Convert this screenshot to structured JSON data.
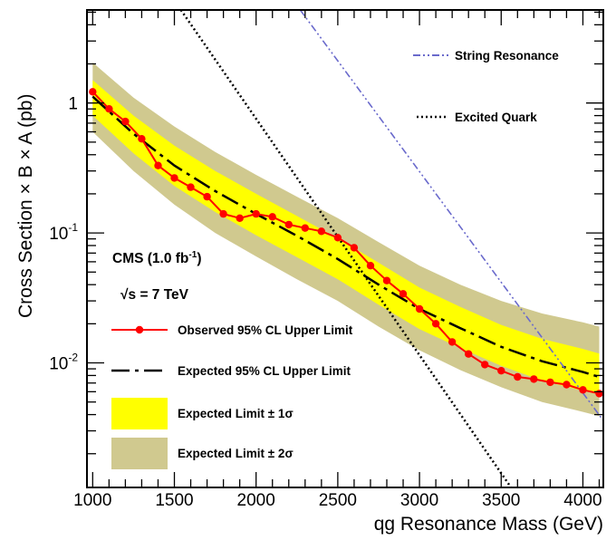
{
  "chart_data": {
    "type": "line",
    "xlabel": "qg Resonance Mass (GeV)",
    "ylabel": "Cross Section × B × A (pb)",
    "xlim": [
      965,
      4125
    ],
    "ylim": [
      0.0011,
      5.2
    ],
    "yscale": "log",
    "x_ticks": [
      1000,
      1500,
      2000,
      2500,
      3000,
      3500,
      4000
    ],
    "x_tick_labels": [
      "1000",
      "1500",
      "2000",
      "2500",
      "3000",
      "3500",
      "4000"
    ],
    "y_ticks": [
      {
        "value": 0.01,
        "label": "10",
        "exp": "-2"
      },
      {
        "value": 0.1,
        "label": "10",
        "exp": "-1"
      },
      {
        "value": 1,
        "label": "1",
        "exp": ""
      }
    ],
    "annotations": {
      "experiment": "CMS (1.0 fb",
      "experiment_sup": "-1",
      "experiment_close": ")",
      "energy_root": "√s",
      "energy": " = 7 TeV"
    },
    "series": [
      {
        "name": "Observed 95% CL Upper Limit",
        "style": "line-markers",
        "color": "#ff0000",
        "x": [
          1000,
          1100,
          1200,
          1300,
          1400,
          1500,
          1600,
          1700,
          1800,
          1900,
          2000,
          2100,
          2200,
          2300,
          2400,
          2500,
          2600,
          2700,
          2800,
          2900,
          3000,
          3100,
          3200,
          3300,
          3400,
          3500,
          3600,
          3700,
          3800,
          3900,
          4000,
          4100
        ],
        "y": [
          1.22,
          0.9,
          0.72,
          0.53,
          0.33,
          0.265,
          0.225,
          0.19,
          0.14,
          0.13,
          0.14,
          0.133,
          0.116,
          0.109,
          0.103,
          0.092,
          0.077,
          0.056,
          0.043,
          0.034,
          0.026,
          0.02,
          0.0145,
          0.0117,
          0.0097,
          0.0087,
          0.0078,
          0.0075,
          0.0071,
          0.0068,
          0.0062,
          0.0058
        ]
      },
      {
        "name": "Expected 95% CL Upper Limit",
        "style": "long-dash-dot",
        "color": "#000000",
        "x": [
          1000,
          1250,
          1500,
          1750,
          2000,
          2250,
          2500,
          2750,
          3000,
          3250,
          3500,
          3750,
          4000,
          4100
        ],
        "y": [
          1.12,
          0.58,
          0.33,
          0.21,
          0.14,
          0.095,
          0.063,
          0.04,
          0.026,
          0.0185,
          0.0133,
          0.0103,
          0.0085,
          0.0078
        ]
      },
      {
        "name": "Excited Quark",
        "style": "dotted",
        "color": "#000000",
        "x": [
          1540,
          3560
        ],
        "y": [
          5.2,
          0.0011
        ]
      },
      {
        "name": "String Resonance",
        "style": "dash-dot-dot",
        "color": "#6a6acc",
        "x": [
          2270,
          4125
        ],
        "y": [
          5.2,
          0.0036
        ]
      }
    ],
    "bands": [
      {
        "name": "Expected Limit ± 2σ",
        "color": "#d0c98f",
        "x": [
          1000,
          1250,
          1500,
          1750,
          2000,
          2250,
          2500,
          2750,
          3000,
          3250,
          3500,
          3750,
          4000,
          4100
        ],
        "lower": [
          0.6,
          0.3,
          0.165,
          0.1,
          0.066,
          0.044,
          0.03,
          0.019,
          0.0125,
          0.0088,
          0.0065,
          0.005,
          0.0042,
          0.0039
        ],
        "upper": [
          2.05,
          1.1,
          0.66,
          0.42,
          0.28,
          0.19,
          0.13,
          0.085,
          0.056,
          0.04,
          0.03,
          0.024,
          0.0205,
          0.019
        ]
      },
      {
        "name": "Expected Limit ± 1σ",
        "color": "#ffff00",
        "x": [
          1000,
          1250,
          1500,
          1750,
          2000,
          2250,
          2500,
          2750,
          3000,
          3250,
          3500,
          3750,
          4000,
          4100
        ],
        "lower": [
          0.8,
          0.41,
          0.23,
          0.145,
          0.096,
          0.065,
          0.044,
          0.028,
          0.0182,
          0.013,
          0.0095,
          0.0073,
          0.0061,
          0.0057
        ],
        "upper": [
          1.5,
          0.8,
          0.47,
          0.3,
          0.2,
          0.135,
          0.091,
          0.059,
          0.038,
          0.027,
          0.0196,
          0.0153,
          0.0128,
          0.0118
        ]
      }
    ],
    "legend": {
      "placement": "inside plot",
      "entries": [
        {
          "key": "string",
          "label": "String Resonance"
        },
        {
          "key": "excited",
          "label": "Excited Quark"
        },
        {
          "key": "observed",
          "label": "Observed 95% CL Upper Limit"
        },
        {
          "key": "expected",
          "label": "Expected 95% CL Upper Limit"
        },
        {
          "key": "band1",
          "label": "Expected Limit ± 1σ"
        },
        {
          "key": "band2",
          "label": "Expected Limit ± 2σ"
        }
      ]
    }
  }
}
